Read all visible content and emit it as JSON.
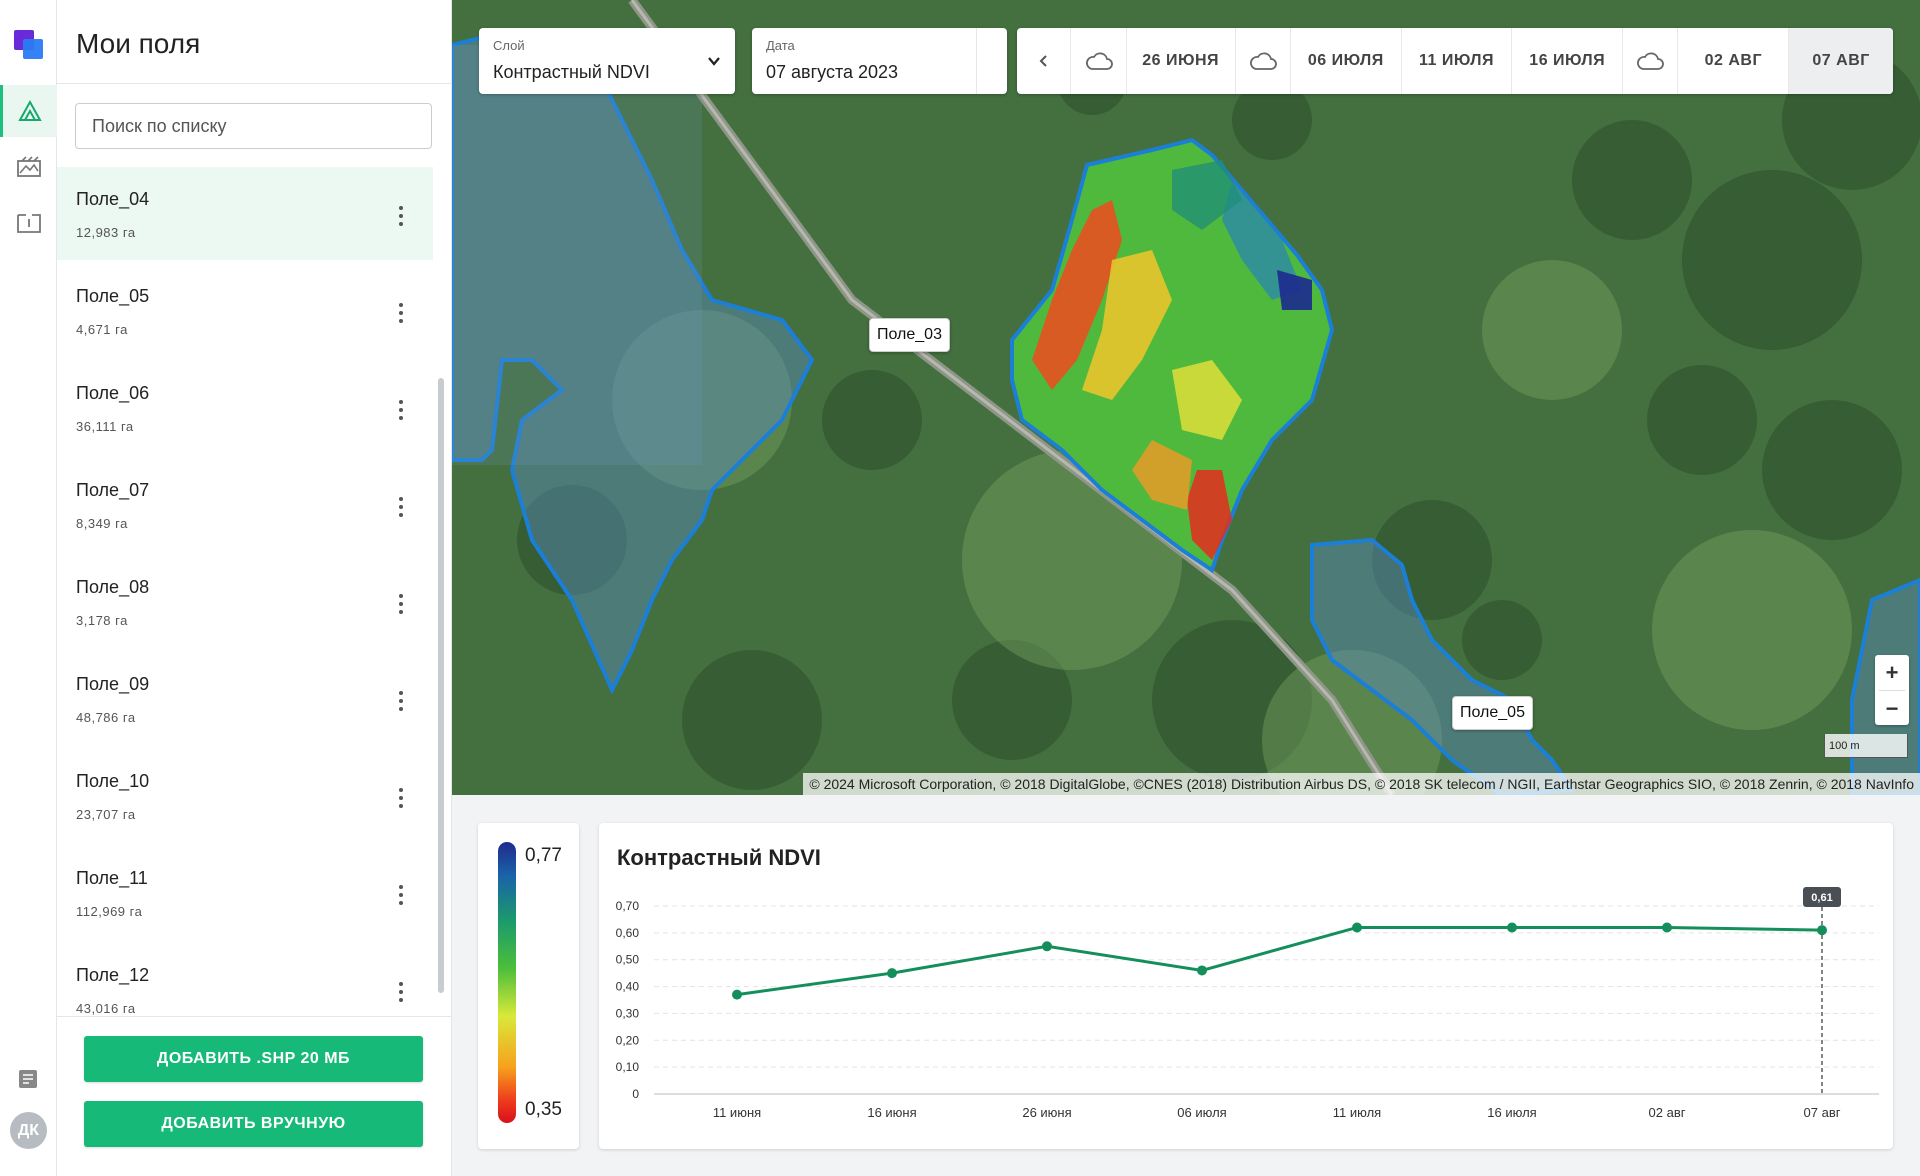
{
  "sidebar": {
    "title": "Мои поля",
    "search_placeholder": "Поиск по списку",
    "fields": [
      {
        "name": "Поле_04",
        "area": "12,983 га",
        "selected": true
      },
      {
        "name": "Поле_05",
        "area": "4,671 га"
      },
      {
        "name": "Поле_06",
        "area": "36,111 га"
      },
      {
        "name": "Поле_07",
        "area": "8,349 га"
      },
      {
        "name": "Поле_08",
        "area": "3,178 га"
      },
      {
        "name": "Поле_09",
        "area": "48,786 га"
      },
      {
        "name": "Поле_10",
        "area": "23,707 га"
      },
      {
        "name": "Поле_11",
        "area": "112,969 га"
      },
      {
        "name": "Поле_12",
        "area": "43,016 га"
      }
    ],
    "add_shp_label": "ДОБАВИТЬ .SHP 20 МБ",
    "add_manual_label": "ДОБАВИТЬ ВРУЧНУЮ"
  },
  "rail": {
    "nav_icons": [
      "fields-icon",
      "crops-icon",
      "map-book-icon"
    ],
    "doc_icon": "document-icon",
    "avatar_initials": "ДК"
  },
  "map": {
    "layer_label": "Слой",
    "layer_value": "Контрастный NDVI",
    "date_label": "Дата",
    "date_value": "07 августа 2023",
    "timeline": [
      {
        "type": "prev",
        "icon": "chevron-left-icon"
      },
      {
        "type": "cloud",
        "icon": "cloud-icon"
      },
      {
        "type": "date",
        "label": "26 ИЮНЯ"
      },
      {
        "type": "cloud",
        "icon": "cloud-icon"
      },
      {
        "type": "date",
        "label": "06 ИЮЛЯ"
      },
      {
        "type": "date",
        "label": "11 ИЮЛЯ"
      },
      {
        "type": "date",
        "label": "16 ИЮЛЯ"
      },
      {
        "type": "cloud",
        "icon": "cloud-icon"
      },
      {
        "type": "date",
        "label": "02 АВГ"
      },
      {
        "type": "date",
        "label": "07 АВГ",
        "active": true
      }
    ],
    "field_labels": [
      "Поле_03",
      "Поле_05"
    ],
    "zoom_in": "+",
    "zoom_out": "−",
    "scale": "100 m",
    "attribution": "© 2024 Microsoft Corporation, © 2018 DigitalGlobe, ©CNES (2018) Distribution Airbus DS, © 2018 SK telecom / NGII, Earthstar Geographics SIO, © 2018 Zenrin, © 2018 NavInfo",
    "colors": {
      "field_outline": "#1b7fd8",
      "satellite_base": "#3d6b3a"
    }
  },
  "legend": {
    "max": "0,77",
    "min": "0,35"
  },
  "chart_data": {
    "type": "line",
    "title": "Контрастный NDVI",
    "categories": [
      "11 июня",
      "16 июня",
      "26 июня",
      "06 июля",
      "11 июля",
      "16 июля",
      "02 авг",
      "07 авг"
    ],
    "values": [
      0.37,
      0.45,
      0.55,
      0.46,
      0.62,
      0.62,
      0.62,
      0.61
    ],
    "yticks": [
      "0",
      "0,10",
      "0,20",
      "0,30",
      "0,40",
      "0,50",
      "0,60",
      "0,70"
    ],
    "ylim": [
      0,
      0.7
    ],
    "tooltip": {
      "label": "0,61",
      "index": 7
    },
    "grid": true,
    "line_color": "#148f5c"
  }
}
